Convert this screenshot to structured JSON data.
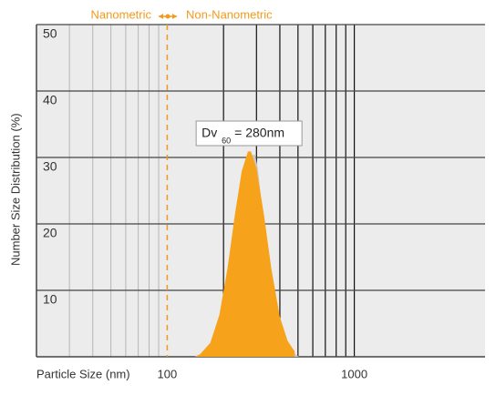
{
  "chart_data": {
    "type": "area",
    "title_left": "Nanometric",
    "title_right": "Non-Nanometric",
    "x_label": "Particle Size (nm)",
    "y_label": "Number Size Distribution (%)",
    "annotation": {
      "main": "Dv",
      "subscript": "60",
      "rest": "= 280nm",
      "x": 280
    },
    "divider_x": 100,
    "log_x": true,
    "xlim": [
      20,
      5000
    ],
    "ylim": [
      0,
      50
    ],
    "xticks": [
      100,
      1000
    ],
    "yticks": [
      10,
      20,
      30,
      40,
      50
    ],
    "x_grid_minor": [
      30,
      40,
      50,
      60,
      70,
      80,
      90
    ],
    "x_grid_major": [
      200,
      300,
      400,
      500,
      600,
      700,
      800,
      900,
      1000
    ],
    "series": [
      {
        "color": "#c8c8c8",
        "x": [
          150,
          175,
          200,
          220,
          242,
          263,
          285,
          295,
          305,
          325,
          348,
          380,
          420,
          465,
          505
        ],
        "values": [
          0.4,
          2.1,
          6.3,
          13.3,
          21.4,
          27.9,
          30.4,
          30.4,
          28.4,
          21.1,
          13.3,
          6.0,
          2.4,
          0.8,
          0
        ]
      },
      {
        "color": "#f7a21b",
        "x": [
          140,
          150,
          170,
          190,
          210,
          230,
          250,
          270,
          280,
          300,
          330,
          360,
          400,
          440,
          480
        ],
        "values": [
          0,
          0.4,
          2.1,
          6.3,
          13.3,
          21.4,
          27.9,
          30.9,
          30.9,
          28.4,
          21.1,
          13.3,
          6.0,
          2.4,
          0.8
        ]
      }
    ]
  }
}
